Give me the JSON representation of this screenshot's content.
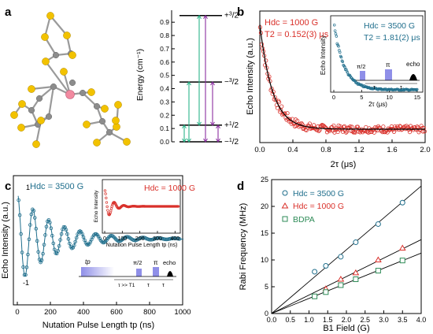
{
  "figure": {
    "panel_labels": [
      "a",
      "b",
      "c",
      "d"
    ]
  },
  "colors": {
    "blue": "#1f6e8c",
    "red": "#d9302a",
    "green": "#2e8b57",
    "purple": "#8b2fa0",
    "teal": "#2bb58a",
    "pulse": "#8f8fe8",
    "sulfur": "#f2c200",
    "carbon": "#8c8c8c",
    "metal": "#f28aa0"
  },
  "panel_a": {
    "ylabel": "Energy (cm⁻¹)",
    "ticks": [
      "0.0",
      "0.1",
      "0.2",
      "0.3",
      "0.4",
      "0.5",
      "0.6",
      "0.7",
      "0.8",
      "0.9"
    ],
    "levels": [
      {
        "label": "+3/2",
        "energy": 0.95
      },
      {
        "label": "−3/2",
        "energy": 0.45
      },
      {
        "label": "+1/2",
        "energy": 0.125
      },
      {
        "label": "−1/2",
        "energy": 0.0
      }
    ]
  },
  "panel_b": {
    "main_label": "Hdc = 1000 G",
    "main_t2": "T2 = 0.152(3) μs",
    "inset_label": "Hdc = 3500 G",
    "inset_t2": "T2 = 1.81(2) μs",
    "ylabel": "Echo Intensity (a.u.)",
    "xlabel": "2τ (μs)",
    "xticks": [
      "0.0",
      "0.4",
      "0.8",
      "1.2",
      "1.6",
      "2.0"
    ],
    "inset_ylabel": "Echo Intensity",
    "inset_xlabel": "2τ (μs)",
    "inset_xticks": [
      "0",
      "5",
      "10",
      "15"
    ],
    "seq": {
      "half": "π/2",
      "pi": "π",
      "tau": "τ",
      "echo": "echo"
    }
  },
  "panel_c": {
    "main_label": "Hdc = 3500 G",
    "inset_label": "Hdc = 1000 G",
    "ylabel": "Echo Intensity (a.u.)",
    "xlabel": "Nutation Pulse Length tp (ns)",
    "xticks": [
      "0",
      "200",
      "400",
      "600",
      "800",
      "1000"
    ],
    "yticks": [
      "1",
      "-1"
    ],
    "inset_ylabel": "Echo Intensity",
    "inset_xlabel": "Nutation Pulse Length tp (ns)",
    "inset_xticks": [
      "0",
      "100",
      "200",
      "300",
      "400"
    ],
    "seq": {
      "tp": "tp",
      "half": "π/2",
      "pi": "π",
      "echo": "echo",
      "tau": "τ",
      "taulong": "τ >> T1"
    }
  },
  "chart_data": [
    {
      "type": "line",
      "panel": "b",
      "xlabel": "2τ (μs)",
      "ylabel": "Echo Intensity (a.u.)",
      "xlim": [
        0.0,
        2.0
      ],
      "series": [
        {
          "name": "Hdc = 1000 G",
          "T2_us": 0.152,
          "fit": "exponential decay"
        }
      ]
    },
    {
      "type": "line",
      "panel": "c",
      "xlabel": "Nutation Pulse Length tp (ns)",
      "ylabel": "Echo Intensity (a.u.)",
      "xlim": [
        0,
        1000
      ],
      "series": [
        {
          "name": "Hdc = 3500 G",
          "oscillation": "damped Rabi"
        }
      ]
    },
    {
      "type": "scatter",
      "panel": "d",
      "xlabel": "B1 Field (G)",
      "ylabel": "Rabi Frequency (MHz)",
      "xlim": [
        0.0,
        4.0
      ],
      "ylim": [
        0,
        25
      ],
      "xticks": [
        "0.0",
        "0.5",
        "1.0",
        "1.5",
        "2.0",
        "2.5",
        "3.0",
        "3.5",
        "4.0"
      ],
      "yticks": [
        "0",
        "5",
        "10",
        "15",
        "20",
        "25"
      ],
      "series": [
        {
          "name": "Hdc = 3500 G",
          "marker": "circle",
          "x": [
            1.15,
            1.45,
            1.85,
            2.25,
            2.85,
            3.5
          ],
          "y": [
            7.8,
            8.9,
            10.6,
            13.3,
            16.7,
            20.7
          ]
        },
        {
          "name": "Hdc = 1000 G",
          "marker": "triangle",
          "x": [
            1.45,
            1.85,
            2.25,
            2.85,
            3.5
          ],
          "y": [
            4.6,
            6.4,
            7.6,
            10.0,
            12.2
          ]
        },
        {
          "name": "BDPA",
          "marker": "square",
          "x": [
            1.15,
            1.45,
            1.85,
            2.25,
            2.85,
            3.5
          ],
          "y": [
            3.2,
            4.0,
            5.3,
            6.4,
            8.0,
            9.9
          ]
        }
      ],
      "fit_slopes": [
        5.95,
        3.45,
        2.82
      ]
    }
  ]
}
